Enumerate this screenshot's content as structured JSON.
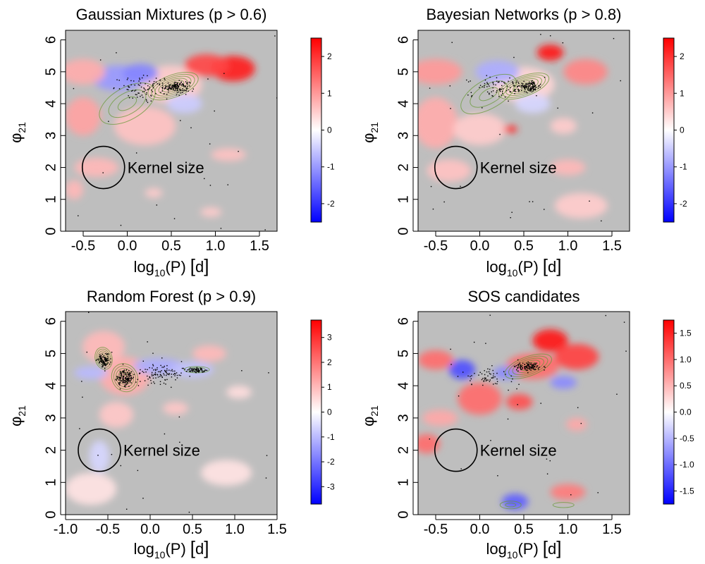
{
  "figure": {
    "colors": {
      "background": "#bebebe",
      "positive": "#ff0000",
      "negative": "#0000ff",
      "neutral": "#ffffff",
      "contour": "#6a9a3a",
      "points": "#000000"
    },
    "axis_label_y_base": "φ",
    "axis_label_y_sub": "21",
    "axis_label_x_log": "log",
    "axis_label_x_sub": "10",
    "axis_label_x_rest": "(P)",
    "axis_label_x_unit": "d",
    "annotation": "Kernel size"
  },
  "chart_data": [
    {
      "type": "heatmap",
      "title": "Gaussian Mixtures (p > 0.6)",
      "xlabel": "log10(P) [d]",
      "ylabel": "φ21",
      "xlim": [
        -0.7,
        1.7
      ],
      "ylim": [
        0,
        6.3
      ],
      "xticks": [
        -0.5,
        0.0,
        0.5,
        1.0,
        1.5
      ],
      "xtick_labels": [
        "-0.5",
        "0.0",
        "0.5",
        "1.0",
        "1.5"
      ],
      "yticks": [
        0,
        1,
        2,
        3,
        4,
        5,
        6
      ],
      "ytick_labels": [
        "0",
        "1",
        "2",
        "3",
        "4",
        "5",
        "6"
      ],
      "colorbar": {
        "range": [
          -2.5,
          2.5
        ],
        "ticks": [
          2,
          1,
          0,
          -1,
          -2
        ],
        "tick_labels": [
          "2",
          "1",
          "0",
          "-1",
          "-2"
        ]
      },
      "kernel": {
        "x": -0.27,
        "y": 2.0,
        "label": "Kernel size"
      },
      "blobs": [
        {
          "x": 0.5,
          "y": 4.6,
          "rx": 0.35,
          "ry": 0.6,
          "v": 0.5
        },
        {
          "x": 1.2,
          "y": 5.1,
          "rx": 0.25,
          "ry": 0.4,
          "v": 2.2
        },
        {
          "x": 0.9,
          "y": 5.2,
          "rx": 0.25,
          "ry": 0.35,
          "v": 1.8
        },
        {
          "x": -0.1,
          "y": 4.8,
          "rx": 0.3,
          "ry": 0.4,
          "v": -1.0
        },
        {
          "x": 0.15,
          "y": 4.95,
          "rx": 0.2,
          "ry": 0.3,
          "v": -1.2
        },
        {
          "x": -0.5,
          "y": 5.0,
          "rx": 0.25,
          "ry": 0.4,
          "v": 0.8
        },
        {
          "x": -0.5,
          "y": 3.6,
          "rx": 0.2,
          "ry": 0.6,
          "v": 0.9
        },
        {
          "x": 0.2,
          "y": 3.3,
          "rx": 0.35,
          "ry": 0.6,
          "v": 0.6
        },
        {
          "x": -0.35,
          "y": 2.0,
          "rx": 0.25,
          "ry": 0.3,
          "v": 0.7
        },
        {
          "x": -0.6,
          "y": 1.3,
          "rx": 0.1,
          "ry": 0.3,
          "v": 0.7
        },
        {
          "x": 1.15,
          "y": 2.4,
          "rx": 0.2,
          "ry": 0.2,
          "v": 0.6
        },
        {
          "x": 0.95,
          "y": 0.6,
          "rx": 0.12,
          "ry": 0.15,
          "v": 0.5
        },
        {
          "x": 0.3,
          "y": 1.2,
          "rx": 0.1,
          "ry": 0.15,
          "v": 0.5
        },
        {
          "x": 0.65,
          "y": 4.0,
          "rx": 0.2,
          "ry": 0.3,
          "v": -0.5
        }
      ],
      "clusters": [
        {
          "x": 0.55,
          "y": 4.55,
          "rx": 0.15,
          "ry": 0.18,
          "n": 140
        },
        {
          "x": 0.2,
          "y": 4.5,
          "rx": 0.35,
          "ry": 0.35,
          "n": 90
        }
      ],
      "contours": [
        {
          "x": 0.52,
          "y": 4.55,
          "rx": 0.3,
          "ry": 0.35,
          "rot": -20,
          "n": 7
        },
        {
          "x": 0.0,
          "y": 4.0,
          "rx": 0.35,
          "ry": 0.5,
          "rot": -30,
          "n": 3
        }
      ]
    },
    {
      "type": "heatmap",
      "title": "Bayesian Networks (p > 0.8)",
      "xlabel": "log10(P) [d]",
      "ylabel": "φ21",
      "xlim": [
        -0.7,
        1.7
      ],
      "ylim": [
        0,
        6.3
      ],
      "xticks": [
        -0.5,
        0.0,
        0.5,
        1.0,
        1.5
      ],
      "xtick_labels": [
        "-0.5",
        "0.0",
        "0.5",
        "1.0",
        "1.5"
      ],
      "yticks": [
        0,
        1,
        2,
        3,
        4,
        5,
        6
      ],
      "ytick_labels": [
        "0",
        "1",
        "2",
        "3",
        "4",
        "5",
        "6"
      ],
      "colorbar": {
        "range": [
          -2.5,
          2.5
        ],
        "ticks": [
          2,
          1,
          0,
          -1,
          -2
        ],
        "tick_labels": [
          "2",
          "1",
          "0",
          "-1",
          "-2"
        ]
      },
      "kernel": {
        "x": -0.27,
        "y": 2.0,
        "label": "Kernel size"
      },
      "blobs": [
        {
          "x": 0.5,
          "y": 4.6,
          "rx": 0.35,
          "ry": 0.55,
          "v": 0.4
        },
        {
          "x": 0.8,
          "y": 5.6,
          "rx": 0.15,
          "ry": 0.25,
          "v": 2.3
        },
        {
          "x": 1.2,
          "y": 5.0,
          "rx": 0.25,
          "ry": 0.4,
          "v": 1.2
        },
        {
          "x": -0.5,
          "y": 5.0,
          "rx": 0.3,
          "ry": 0.4,
          "v": 1.0
        },
        {
          "x": 0.2,
          "y": 5.0,
          "rx": 0.25,
          "ry": 0.35,
          "v": -0.8
        },
        {
          "x": -0.5,
          "y": 3.4,
          "rx": 0.25,
          "ry": 0.8,
          "v": 0.8
        },
        {
          "x": 0.0,
          "y": 3.2,
          "rx": 0.3,
          "ry": 0.5,
          "v": 0.5
        },
        {
          "x": 0.35,
          "y": 3.2,
          "rx": 0.08,
          "ry": 0.12,
          "v": 2.0
        },
        {
          "x": -0.35,
          "y": 1.9,
          "rx": 0.25,
          "ry": 0.35,
          "v": 0.6
        },
        {
          "x": 1.0,
          "y": 2.0,
          "rx": 0.2,
          "ry": 0.25,
          "v": 0.7
        },
        {
          "x": 1.15,
          "y": 0.8,
          "rx": 0.3,
          "ry": 0.4,
          "v": 0.5
        },
        {
          "x": 0.95,
          "y": 3.3,
          "rx": 0.15,
          "ry": 0.25,
          "v": 0.5
        },
        {
          "x": 0.6,
          "y": 4.0,
          "rx": 0.2,
          "ry": 0.3,
          "v": -0.4
        }
      ],
      "clusters": [
        {
          "x": 0.55,
          "y": 4.55,
          "rx": 0.14,
          "ry": 0.16,
          "n": 130
        },
        {
          "x": 0.2,
          "y": 4.55,
          "rx": 0.35,
          "ry": 0.35,
          "n": 80
        }
      ],
      "contours": [
        {
          "x": 0.5,
          "y": 4.55,
          "rx": 0.3,
          "ry": 0.32,
          "rot": -20,
          "n": 7
        },
        {
          "x": 0.1,
          "y": 4.3,
          "rx": 0.35,
          "ry": 0.45,
          "rot": -30,
          "n": 3
        }
      ]
    },
    {
      "type": "heatmap",
      "title": "Random Forest (p > 0.9)",
      "xlabel": "log10(P) [d]",
      "ylabel": "φ21",
      "xlim": [
        -1.0,
        1.5
      ],
      "ylim": [
        0,
        6.3
      ],
      "xticks": [
        -1.0,
        -0.5,
        0.0,
        0.5,
        1.0,
        1.5
      ],
      "xtick_labels": [
        "-1.0",
        "-0.5",
        "0.0",
        "0.5",
        "1.0",
        "1.5"
      ],
      "yticks": [
        0,
        1,
        2,
        3,
        4,
        5,
        6
      ],
      "ytick_labels": [
        "0",
        "1",
        "2",
        "3",
        "4",
        "5",
        "6"
      ],
      "colorbar": {
        "range": [
          -3.7,
          3.7
        ],
        "ticks": [
          3,
          2,
          1,
          0,
          -1,
          -2,
          -3
        ],
        "tick_labels": [
          "3",
          "2",
          "1",
          "0",
          "-1",
          "-2",
          "-3"
        ]
      },
      "kernel": {
        "x": -0.6,
        "y": 2.0,
        "label": "Kernel size"
      },
      "blobs": [
        {
          "x": -0.3,
          "y": 4.3,
          "rx": 0.3,
          "ry": 0.6,
          "v": 1.2
        },
        {
          "x": -0.55,
          "y": 5.2,
          "rx": 0.25,
          "ry": 0.5,
          "v": 1.0
        },
        {
          "x": 0.1,
          "y": 4.6,
          "rx": 0.3,
          "ry": 0.25,
          "v": -1.2
        },
        {
          "x": 0.5,
          "y": 4.5,
          "rx": 0.25,
          "ry": 0.25,
          "v": -0.9
        },
        {
          "x": -0.7,
          "y": 4.4,
          "rx": 0.2,
          "ry": 0.2,
          "v": -1.0
        },
        {
          "x": 0.7,
          "y": 5.0,
          "rx": 0.2,
          "ry": 0.25,
          "v": 1.0
        },
        {
          "x": -0.4,
          "y": 3.1,
          "rx": 0.2,
          "ry": 0.4,
          "v": 0.8
        },
        {
          "x": 0.3,
          "y": 3.3,
          "rx": 0.15,
          "ry": 0.2,
          "v": 0.8
        },
        {
          "x": -0.6,
          "y": 1.8,
          "rx": 0.12,
          "ry": 0.5,
          "v": -0.6
        },
        {
          "x": 0.9,
          "y": 1.3,
          "rx": 0.3,
          "ry": 0.4,
          "v": 0.4
        },
        {
          "x": -0.7,
          "y": 0.8,
          "rx": 0.3,
          "ry": 0.5,
          "v": 0.4
        },
        {
          "x": 1.05,
          "y": 3.8,
          "rx": 0.15,
          "ry": 0.2,
          "v": 0.5
        }
      ],
      "clusters": [
        {
          "x": -0.55,
          "y": 4.8,
          "rx": 0.07,
          "ry": 0.2,
          "n": 110
        },
        {
          "x": -0.3,
          "y": 4.25,
          "rx": 0.1,
          "ry": 0.25,
          "n": 140
        },
        {
          "x": 0.55,
          "y": 4.5,
          "rx": 0.12,
          "ry": 0.08,
          "n": 70
        },
        {
          "x": 0.1,
          "y": 4.4,
          "rx": 0.3,
          "ry": 0.3,
          "n": 110
        }
      ],
      "contours": [
        {
          "x": -0.55,
          "y": 4.85,
          "rx": 0.1,
          "ry": 0.35,
          "rot": -15,
          "n": 6
        },
        {
          "x": -0.3,
          "y": 4.25,
          "rx": 0.15,
          "ry": 0.45,
          "rot": -30,
          "n": 6
        },
        {
          "x": 0.55,
          "y": 4.5,
          "rx": 0.15,
          "ry": 0.1,
          "rot": 0,
          "n": 3
        }
      ]
    },
    {
      "type": "heatmap",
      "title": "SOS candidates",
      "xlabel": "log10(P) [d]",
      "ylabel": "φ21",
      "xlim": [
        -0.7,
        1.7
      ],
      "ylim": [
        0,
        6.3
      ],
      "xticks": [
        -0.5,
        0.0,
        0.5,
        1.0,
        1.5
      ],
      "xtick_labels": [
        "-0.5",
        "0.0",
        "0.5",
        "1.0",
        "1.5"
      ],
      "yticks": [
        0,
        1,
        2,
        3,
        4,
        5,
        6
      ],
      "ytick_labels": [
        "0",
        "1",
        "2",
        "3",
        "4",
        "5",
        "6"
      ],
      "colorbar": {
        "range": [
          -1.75,
          1.75
        ],
        "ticks": [
          1.5,
          1.0,
          0.5,
          0.0,
          -0.5,
          -1.0,
          -1.5
        ],
        "tick_labels": [
          "1.5",
          "1.0",
          "0.5",
          "0.0",
          "-0.5",
          "-1.0",
          "-1.5"
        ]
      },
      "kernel": {
        "x": -0.27,
        "y": 2.0,
        "label": "Kernel size"
      },
      "blobs": [
        {
          "x": 0.6,
          "y": 4.6,
          "rx": 0.3,
          "ry": 0.4,
          "v": 1.0
        },
        {
          "x": 0.8,
          "y": 5.4,
          "rx": 0.2,
          "ry": 0.35,
          "v": 1.6
        },
        {
          "x": 1.1,
          "y": 4.9,
          "rx": 0.25,
          "ry": 0.4,
          "v": 1.3
        },
        {
          "x": -0.5,
          "y": 4.8,
          "rx": 0.2,
          "ry": 0.3,
          "v": 1.0
        },
        {
          "x": -0.2,
          "y": 4.5,
          "rx": 0.15,
          "ry": 0.3,
          "v": -1.2
        },
        {
          "x": 0.3,
          "y": 4.4,
          "rx": 0.15,
          "ry": 0.2,
          "v": -0.8
        },
        {
          "x": 0.0,
          "y": 3.6,
          "rx": 0.25,
          "ry": 0.5,
          "v": 1.0
        },
        {
          "x": 0.45,
          "y": 3.5,
          "rx": 0.15,
          "ry": 0.25,
          "v": 1.2
        },
        {
          "x": -0.6,
          "y": 2.2,
          "rx": 0.15,
          "ry": 0.3,
          "v": 1.0
        },
        {
          "x": -0.45,
          "y": 3.0,
          "rx": 0.2,
          "ry": 0.25,
          "v": 0.6
        },
        {
          "x": 0.4,
          "y": 0.4,
          "rx": 0.15,
          "ry": 0.25,
          "v": -1.1
        },
        {
          "x": 1.0,
          "y": 0.7,
          "rx": 0.2,
          "ry": 0.25,
          "v": 0.9
        },
        {
          "x": 1.1,
          "y": 2.8,
          "rx": 0.12,
          "ry": 0.2,
          "v": 0.6
        },
        {
          "x": 0.95,
          "y": 4.1,
          "rx": 0.15,
          "ry": 0.2,
          "v": -0.8
        }
      ],
      "clusters": [
        {
          "x": 0.55,
          "y": 4.6,
          "rx": 0.15,
          "ry": 0.14,
          "n": 110
        },
        {
          "x": 0.1,
          "y": 4.3,
          "rx": 0.3,
          "ry": 0.35,
          "n": 60
        }
      ],
      "contours": [
        {
          "x": 0.55,
          "y": 4.6,
          "rx": 0.28,
          "ry": 0.3,
          "rot": -20,
          "n": 6
        },
        {
          "x": 0.35,
          "y": 0.3,
          "rx": 0.12,
          "ry": 0.12,
          "rot": 0,
          "n": 2
        },
        {
          "x": 0.95,
          "y": 0.3,
          "rx": 0.12,
          "ry": 0.08,
          "rot": 0,
          "n": 1
        }
      ]
    }
  ]
}
